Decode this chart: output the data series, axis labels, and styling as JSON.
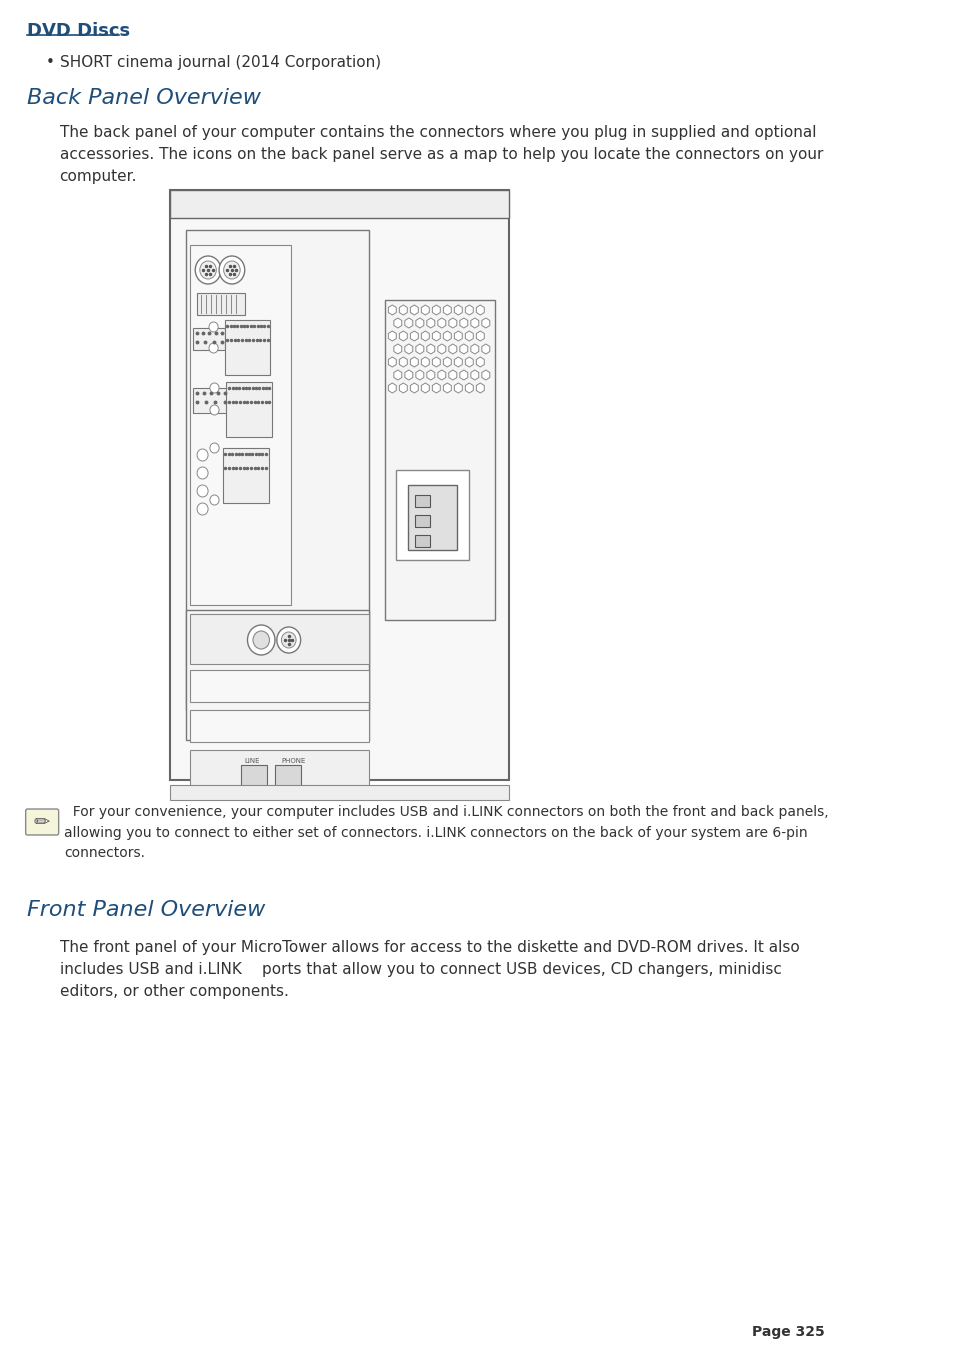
{
  "bg_color": "#ffffff",
  "title_dvd": "DVD Discs",
  "title_dvd_color": "#1f4e79",
  "bullet_text": "SHORT cinema journal (2014 Corporation)",
  "section1_title": "Back Panel Overview",
  "section1_color": "#1f4e79",
  "section1_body": "The back panel of your computer contains the connectors where you plug in supplied and optional\naccessories. The icons on the back panel serve as a map to help you locate the connectors on your\ncomputer.",
  "note_text": "  For your convenience, your computer includes USB and i.LINK connectors on both the front and back panels,\nallowing you to connect to either set of connectors. i.LINK connectors on the back of your system are 6-pin\nconnectors.",
  "section2_title": "Front Panel Overview",
  "section2_color": "#1f4e79",
  "section2_body": "The front panel of your MicroTower allows for access to the diskette and DVD-ROM drives. It also\nincludes USB and i.LINK  ports that allow you to connect USB devices, CD changers, minidisc\neditors, or other components.",
  "page_num": "Page 325"
}
